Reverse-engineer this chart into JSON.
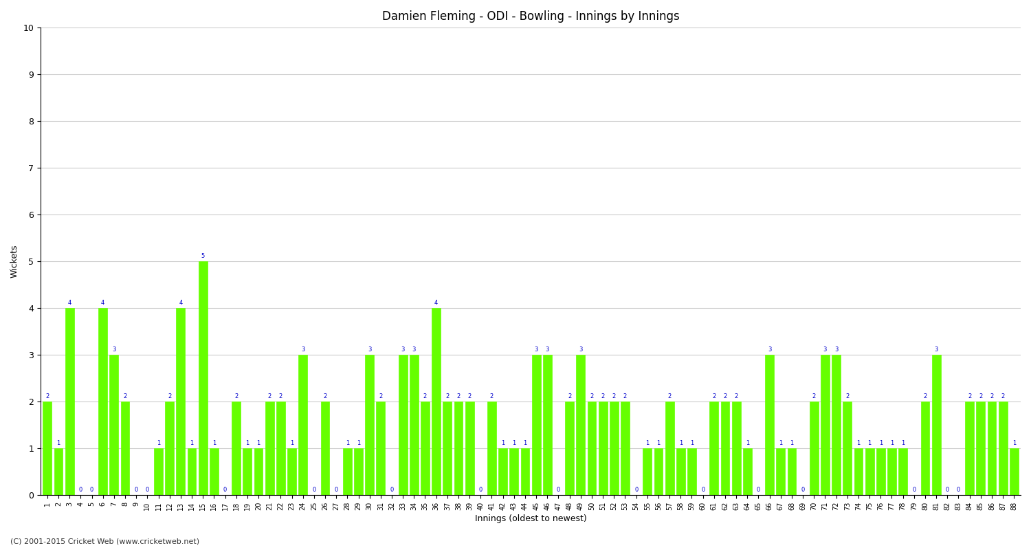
{
  "title": "Damien Fleming - ODI - Bowling - Innings by Innings",
  "xlabel": "Innings (oldest to newest)",
  "ylabel": "Wickets",
  "ylim": [
    0,
    10
  ],
  "yticks": [
    0,
    1,
    2,
    3,
    4,
    5,
    6,
    7,
    8,
    9,
    10
  ],
  "bar_color": "#66ff00",
  "bar_edge_color": "#66ff00",
  "label_color": "#0000cc",
  "background_color": "#ffffff",
  "grid_color": "#cccccc",
  "categories": [
    1,
    2,
    3,
    4,
    5,
    6,
    7,
    8,
    9,
    10,
    11,
    12,
    13,
    14,
    15,
    16,
    17,
    18,
    19,
    20,
    21,
    22,
    23,
    24,
    25,
    26,
    27,
    28,
    29,
    30,
    31,
    32,
    33,
    34,
    35,
    36,
    37,
    38,
    39,
    40,
    41,
    42,
    43,
    44,
    45,
    46,
    47,
    48,
    49,
    50,
    51,
    52,
    53,
    54,
    55,
    56,
    57,
    58,
    59,
    60,
    61,
    62,
    63,
    64,
    65,
    66,
    67,
    68,
    69,
    70,
    71,
    72,
    73,
    74,
    75,
    76,
    77,
    78,
    79,
    80,
    81,
    82,
    83,
    84,
    85,
    86,
    87,
    88
  ],
  "values": [
    2,
    1,
    4,
    0,
    0,
    4,
    3,
    2,
    0,
    0,
    1,
    2,
    4,
    1,
    5,
    1,
    0,
    2,
    1,
    1,
    2,
    2,
    1,
    3,
    0,
    2,
    0,
    1,
    1,
    3,
    2,
    0,
    3,
    3,
    2,
    4,
    2,
    2,
    2,
    0,
    2,
    1,
    1,
    1,
    3,
    3,
    0,
    2,
    3,
    2,
    2,
    2,
    2,
    0,
    1,
    1,
    2,
    1,
    1,
    0,
    2,
    2,
    2,
    1,
    0,
    3,
    1,
    1,
    0,
    2,
    3,
    3,
    2,
    1,
    1,
    1,
    1,
    1,
    0,
    2,
    3,
    0,
    0,
    2,
    2,
    2,
    2,
    1
  ]
}
